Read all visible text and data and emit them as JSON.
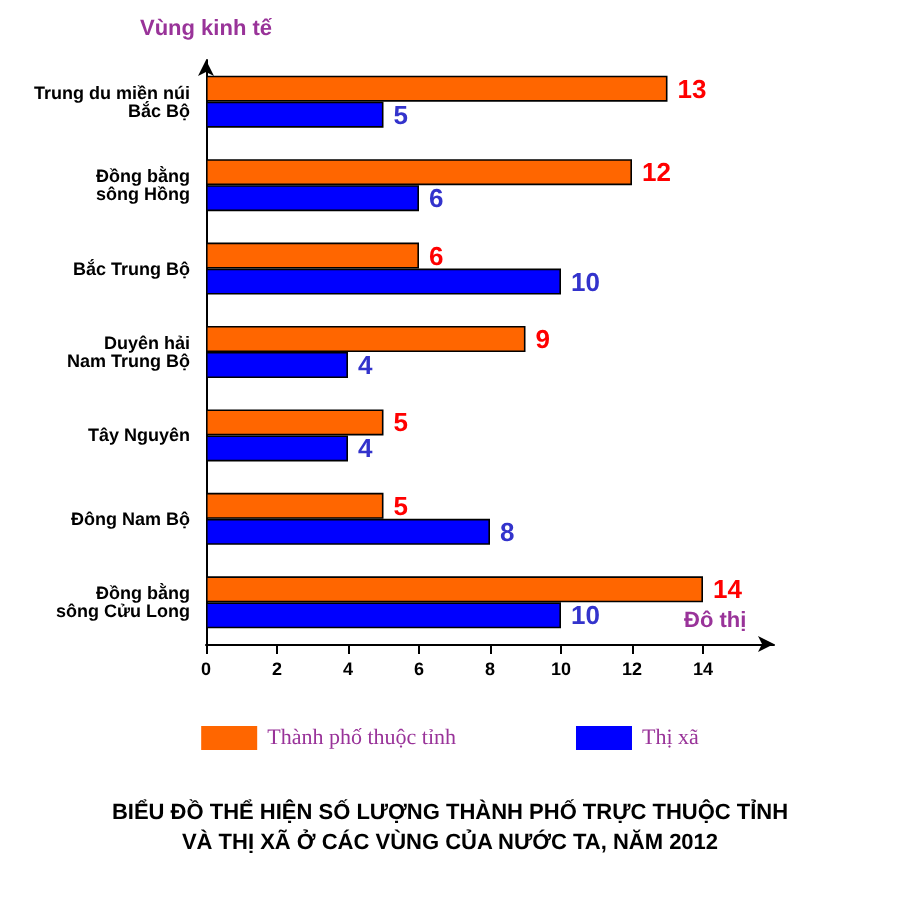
{
  "chart_data": {
    "type": "bar",
    "orientation": "horizontal",
    "title": "BIỂU ĐỒ THỂ HIỆN SỐ LƯỢNG THÀNH PHỐ TRỰC THUỘC TỈNH\nVÀ THỊ XÃ Ở CÁC VÙNG CỦA NƯỚC TA, NĂM 2012",
    "xlabel": "Đô thị",
    "ylabel": "Vùng kinh tế",
    "categories": [
      "Trung du miền núi\nBắc Bộ",
      "Đồng bằng\nsông Hồng",
      "Bắc Trung Bộ",
      "Duyên hải\nNam Trung Bộ",
      "Tây Nguyên",
      "Đông Nam Bộ",
      "Đồng bằng\nsông Cửu Long"
    ],
    "series": [
      {
        "name": "Thành phố thuộc tỉnh",
        "color": "#ff6600",
        "values": [
          13,
          12,
          6,
          9,
          5,
          5,
          14
        ]
      },
      {
        "name": "Thị xã",
        "color": "#0000ff",
        "values": [
          5,
          6,
          10,
          4,
          4,
          8,
          10
        ]
      }
    ],
    "xlim": [
      0,
      16
    ],
    "xticks": [
      0,
      2,
      4,
      6,
      8,
      10,
      12,
      14
    ],
    "data_labels": true,
    "grid": false,
    "legend": "bottom"
  }
}
